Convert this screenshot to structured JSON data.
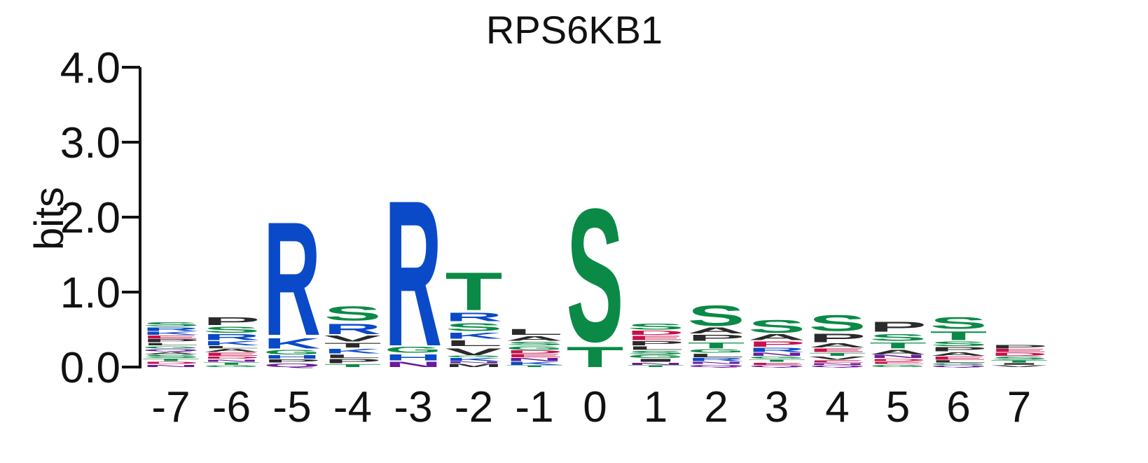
{
  "chart_data": {
    "type": "sequence-logo",
    "title": "RPS6KB1",
    "ylabel": "bits",
    "ylim": [
      0,
      4
    ],
    "yticks": [
      "0.0",
      "1.0",
      "2.0",
      "3.0",
      "4.0"
    ],
    "colors": {
      "green": "#0a8a46",
      "blue": "#0a4ac8",
      "black": "#2a2a2a",
      "red": "#c8104a",
      "purple": "#6a1a9a"
    },
    "positions": [
      {
        "label": "-7",
        "letters": [
          {
            "l": "N",
            "h": 0.04,
            "c": "purple"
          },
          {
            "l": "D",
            "h": 0.04,
            "c": "red"
          },
          {
            "l": "T",
            "h": 0.04,
            "c": "green"
          },
          {
            "l": "S",
            "h": 0.05,
            "c": "green"
          },
          {
            "l": "A",
            "h": 0.04,
            "c": "black"
          },
          {
            "l": "Q",
            "h": 0.04,
            "c": "purple"
          },
          {
            "l": "G",
            "h": 0.04,
            "c": "green"
          },
          {
            "l": "L",
            "h": 0.04,
            "c": "black"
          },
          {
            "l": "P",
            "h": 0.05,
            "c": "black"
          },
          {
            "l": "E",
            "h": 0.05,
            "c": "red"
          },
          {
            "l": "K",
            "h": 0.05,
            "c": "blue"
          },
          {
            "l": "R",
            "h": 0.06,
            "c": "blue"
          },
          {
            "l": "S",
            "h": 0.07,
            "c": "green"
          }
        ]
      },
      {
        "label": "-6",
        "letters": [
          {
            "l": "G",
            "h": 0.03,
            "c": "green"
          },
          {
            "l": "T",
            "h": 0.04,
            "c": "green"
          },
          {
            "l": "N",
            "h": 0.04,
            "c": "purple"
          },
          {
            "l": "D",
            "h": 0.04,
            "c": "red"
          },
          {
            "l": "E",
            "h": 0.05,
            "c": "red"
          },
          {
            "l": "A",
            "h": 0.05,
            "c": "black"
          },
          {
            "l": "L",
            "h": 0.04,
            "c": "black"
          },
          {
            "l": "K",
            "h": 0.07,
            "c": "blue"
          },
          {
            "l": "R",
            "h": 0.1,
            "c": "blue"
          },
          {
            "l": "S",
            "h": 0.1,
            "c": "green"
          },
          {
            "l": "P",
            "h": 0.13,
            "c": "black"
          }
        ]
      },
      {
        "label": "-5",
        "letters": [
          {
            "l": "Q",
            "h": 0.06,
            "c": "purple"
          },
          {
            "l": "P",
            "h": 0.05,
            "c": "black"
          },
          {
            "l": "H",
            "h": 0.06,
            "c": "blue"
          },
          {
            "l": "G",
            "h": 0.08,
            "c": "green"
          },
          {
            "l": "K",
            "h": 0.18,
            "c": "blue"
          },
          {
            "l": "R",
            "h": 1.95,
            "c": "blue"
          }
        ]
      },
      {
        "label": "-4",
        "letters": [
          {
            "l": "T",
            "h": 0.05,
            "c": "green"
          },
          {
            "l": "P",
            "h": 0.07,
            "c": "black"
          },
          {
            "l": "L",
            "h": 0.06,
            "c": "black"
          },
          {
            "l": "K",
            "h": 0.08,
            "c": "blue"
          },
          {
            "l": "T",
            "h": 0.08,
            "c": "black"
          },
          {
            "l": "V",
            "h": 0.1,
            "c": "black"
          },
          {
            "l": "R",
            "h": 0.18,
            "c": "blue"
          },
          {
            "l": "S",
            "h": 0.24,
            "c": "green"
          }
        ]
      },
      {
        "label": "-3",
        "letters": [
          {
            "l": "N",
            "h": 0.09,
            "c": "purple"
          },
          {
            "l": "H",
            "h": 0.1,
            "c": "blue"
          },
          {
            "l": "G",
            "h": 0.1,
            "c": "green"
          },
          {
            "l": "R",
            "h": 2.5,
            "c": "blue"
          }
        ]
      },
      {
        "label": "-2",
        "letters": [
          {
            "l": "M",
            "h": 0.05,
            "c": "black"
          },
          {
            "l": "N",
            "h": 0.03,
            "c": "purple"
          },
          {
            "l": "K",
            "h": 0.05,
            "c": "blue"
          },
          {
            "l": "G",
            "h": 0.03,
            "c": "green"
          },
          {
            "l": "V",
            "h": 0.12,
            "c": "black"
          },
          {
            "l": "L",
            "h": 0.1,
            "c": "black"
          },
          {
            "l": "K",
            "h": 0.1,
            "c": "blue"
          },
          {
            "l": "S",
            "h": 0.13,
            "c": "green"
          },
          {
            "l": "R",
            "h": 0.15,
            "c": "blue"
          },
          {
            "l": "T",
            "h": 0.65,
            "c": "green"
          }
        ]
      },
      {
        "label": "-1",
        "letters": [
          {
            "l": "T",
            "h": 0.03,
            "c": "green"
          },
          {
            "l": "K",
            "h": 0.05,
            "c": "blue"
          },
          {
            "l": "N",
            "h": 0.05,
            "c": "purple"
          },
          {
            "l": "E",
            "h": 0.05,
            "c": "red"
          },
          {
            "l": "D",
            "h": 0.05,
            "c": "red"
          },
          {
            "l": "G",
            "h": 0.06,
            "c": "green"
          },
          {
            "l": "S",
            "h": 0.06,
            "c": "green"
          },
          {
            "l": "A",
            "h": 0.08,
            "c": "black"
          },
          {
            "l": "L",
            "h": 0.1,
            "c": "black"
          }
        ]
      },
      {
        "label": "0",
        "letters": [
          {
            "l": "T",
            "h": 0.35,
            "c": "green"
          },
          {
            "l": "S",
            "h": 2.28,
            "c": "green"
          }
        ]
      },
      {
        "label": "1",
        "letters": [
          {
            "l": "T",
            "h": 0.03,
            "c": "green"
          },
          {
            "l": "N",
            "h": 0.04,
            "c": "purple"
          },
          {
            "l": "I",
            "h": 0.05,
            "c": "black"
          },
          {
            "l": "G",
            "h": 0.05,
            "c": "green"
          },
          {
            "l": "S",
            "h": 0.06,
            "c": "green"
          },
          {
            "l": "L",
            "h": 0.06,
            "c": "black"
          },
          {
            "l": "P",
            "h": 0.07,
            "c": "black"
          },
          {
            "l": "E",
            "h": 0.07,
            "c": "red"
          },
          {
            "l": "D",
            "h": 0.07,
            "c": "red"
          },
          {
            "l": "S",
            "h": 0.1,
            "c": "green"
          }
        ]
      },
      {
        "label": "2",
        "letters": [
          {
            "l": "Q",
            "h": 0.04,
            "c": "purple"
          },
          {
            "l": "N",
            "h": 0.04,
            "c": "purple"
          },
          {
            "l": "R",
            "h": 0.05,
            "c": "blue"
          },
          {
            "l": "L",
            "h": 0.06,
            "c": "black"
          },
          {
            "l": "G",
            "h": 0.06,
            "c": "green"
          },
          {
            "l": "T",
            "h": 0.1,
            "c": "green"
          },
          {
            "l": "P",
            "h": 0.1,
            "c": "black"
          },
          {
            "l": "A",
            "h": 0.1,
            "c": "black"
          },
          {
            "l": "S",
            "h": 0.35,
            "c": "green"
          }
        ]
      },
      {
        "label": "3",
        "letters": [
          {
            "l": "Q",
            "h": 0.03,
            "c": "purple"
          },
          {
            "l": "E",
            "h": 0.04,
            "c": "red"
          },
          {
            "l": "T",
            "h": 0.04,
            "c": "green"
          },
          {
            "l": "G",
            "h": 0.04,
            "c": "green"
          },
          {
            "l": "N",
            "h": 0.05,
            "c": "purple"
          },
          {
            "l": "R",
            "h": 0.07,
            "c": "blue"
          },
          {
            "l": "P",
            "h": 0.09,
            "c": "red"
          },
          {
            "l": "A",
            "h": 0.1,
            "c": "black"
          },
          {
            "l": "S",
            "h": 0.22,
            "c": "green"
          }
        ]
      },
      {
        "label": "4",
        "letters": [
          {
            "l": "Q",
            "h": 0.03,
            "c": "purple"
          },
          {
            "l": "N",
            "h": 0.03,
            "c": "purple"
          },
          {
            "l": "E",
            "h": 0.04,
            "c": "red"
          },
          {
            "l": "V",
            "h": 0.05,
            "c": "black"
          },
          {
            "l": "T",
            "h": 0.05,
            "c": "green"
          },
          {
            "l": "E",
            "h": 0.06,
            "c": "red"
          },
          {
            "l": "A",
            "h": 0.07,
            "c": "black"
          },
          {
            "l": "P",
            "h": 0.15,
            "c": "black"
          },
          {
            "l": "S",
            "h": 0.27,
            "c": "green"
          }
        ]
      },
      {
        "label": "5",
        "letters": [
          {
            "l": "G",
            "h": 0.04,
            "c": "green"
          },
          {
            "l": "E",
            "h": 0.04,
            "c": "red"
          },
          {
            "l": "D",
            "h": 0.04,
            "c": "red"
          },
          {
            "l": "N",
            "h": 0.05,
            "c": "purple"
          },
          {
            "l": "A",
            "h": 0.08,
            "c": "black"
          },
          {
            "l": "T",
            "h": 0.1,
            "c": "green"
          },
          {
            "l": "S",
            "h": 0.12,
            "c": "green"
          },
          {
            "l": "P",
            "h": 0.17,
            "c": "black"
          }
        ]
      },
      {
        "label": "6",
        "letters": [
          {
            "l": "Q",
            "h": 0.03,
            "c": "purple"
          },
          {
            "l": "G",
            "h": 0.03,
            "c": "green"
          },
          {
            "l": "L",
            "h": 0.04,
            "c": "black"
          },
          {
            "l": "E",
            "h": 0.05,
            "c": "red"
          },
          {
            "l": "A",
            "h": 0.06,
            "c": "black"
          },
          {
            "l": "P",
            "h": 0.07,
            "c": "black"
          },
          {
            "l": "S",
            "h": 0.08,
            "c": "green"
          },
          {
            "l": "T",
            "h": 0.15,
            "c": "green"
          },
          {
            "l": "S",
            "h": 0.2,
            "c": "green"
          }
        ]
      },
      {
        "label": "7",
        "letters": [
          {
            "l": "V",
            "h": 0.03,
            "c": "black"
          },
          {
            "l": "I",
            "h": 0.03,
            "c": "black"
          },
          {
            "l": "T",
            "h": 0.04,
            "c": "green"
          },
          {
            "l": "S",
            "h": 0.05,
            "c": "green"
          },
          {
            "l": "D",
            "h": 0.05,
            "c": "red"
          },
          {
            "l": "E",
            "h": 0.05,
            "c": "red"
          },
          {
            "l": "P",
            "h": 0.06,
            "c": "black"
          }
        ]
      }
    ]
  }
}
